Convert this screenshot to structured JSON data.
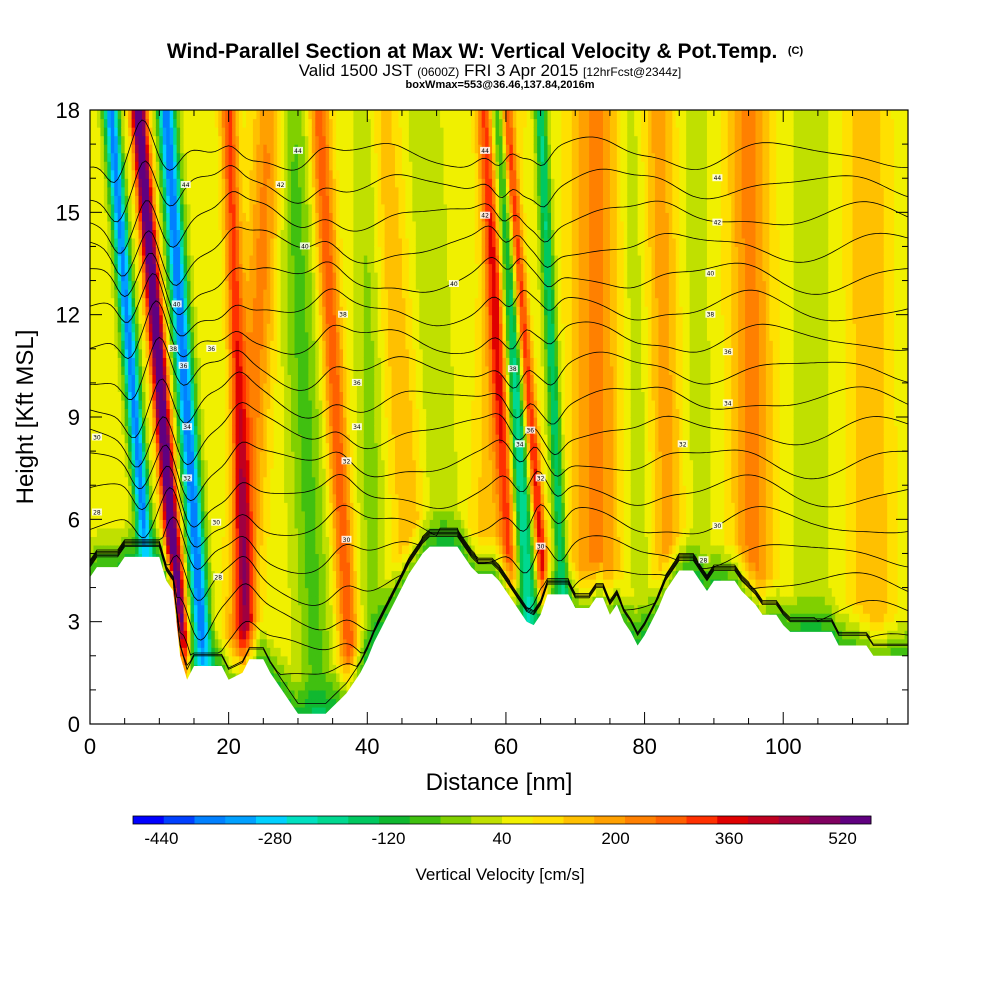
{
  "chart_data": {
    "type": "heatmap",
    "title": "Wind-Parallel Section at Max W: Vertical Velocity & Pot.Temp.",
    "copyright": "(C)",
    "subtitle_prefix": "Valid 1500 JST",
    "subtitle_utc": "(0600Z)",
    "subtitle_date": "FRI 3 Apr 2015",
    "subtitle_forecast": "[12hrFcst@2344z]",
    "box_info": "boxWmax=553@36.46,137.84,2016m",
    "xlabel": "Distance [nm]",
    "ylabel": "Height [Kft MSL]",
    "xlim": [
      0,
      118
    ],
    "ylim": [
      0,
      18
    ],
    "x_ticks": [
      "0",
      "20",
      "40",
      "60",
      "80",
      "100"
    ],
    "y_ticks": [
      "0",
      "3",
      "6",
      "9",
      "12",
      "15",
      "18"
    ],
    "colorbar": {
      "title": "Vertical Velocity [cm/s]",
      "tick_labels": [
        "-440",
        "-280",
        "-120",
        "40",
        "200",
        "360",
        "520"
      ],
      "min": -480,
      "max": 560,
      "colors": [
        "#0000ff",
        "#0040ff",
        "#0080ff",
        "#00a0ff",
        "#00d0ff",
        "#00e0c0",
        "#00d890",
        "#00c860",
        "#10b830",
        "#40c010",
        "#80d000",
        "#c0e000",
        "#f0f000",
        "#ffe000",
        "#ffc000",
        "#ffa000",
        "#ff8000",
        "#ff6000",
        "#ff3000",
        "#e00000",
        "#c00020",
        "#a00040",
        "#800060",
        "#600080"
      ]
    },
    "updrafts": [
      {
        "x0": 14,
        "x1": 7,
        "amplitude": 560,
        "width": 1.1
      },
      {
        "x0": 10,
        "x1": 3,
        "amplitude": -430,
        "width": 1.1
      },
      {
        "x0": 17,
        "x1": 11,
        "amplitude": -450,
        "width": 1.3
      },
      {
        "x0": 21,
        "x1": 26,
        "amplitude": 170,
        "width": 2.3
      },
      {
        "x0": 23,
        "x1": 20,
        "amplitude": 250,
        "width": 1.2
      },
      {
        "x0": 33,
        "x1": 29,
        "amplitude": -120,
        "width": 2.5
      },
      {
        "x0": 38,
        "x1": 33,
        "amplitude": 230,
        "width": 1.5
      },
      {
        "x0": 41,
        "x1": 40,
        "amplitude": -80,
        "width": 2
      },
      {
        "x0": 48,
        "x1": 42,
        "amplitude": 100,
        "width": 2.5
      },
      {
        "x0": 52,
        "x1": 48,
        "amplitude": -60,
        "width": 2.5
      },
      {
        "x0": 56,
        "x1": 60,
        "amplitude": 90,
        "width": 2.5
      },
      {
        "x0": 64,
        "x1": 59,
        "amplitude": -300,
        "width": 1.5
      },
      {
        "x0": 62,
        "x1": 57,
        "amplitude": 270,
        "width": 1.3
      },
      {
        "x0": 67,
        "x1": 60,
        "amplitude": 320,
        "width": 0.9
      },
      {
        "x0": 69,
        "x1": 65,
        "amplitude": -240,
        "width": 0.9
      },
      {
        "x0": 73,
        "x1": 73,
        "amplitude": 170,
        "width": 3.5
      },
      {
        "x0": 80,
        "x1": 78,
        "amplitude": -60,
        "width": 2
      },
      {
        "x0": 84,
        "x1": 82,
        "amplitude": 130,
        "width": 2.5
      },
      {
        "x0": 88,
        "x1": 87,
        "amplitude": -40,
        "width": 2.5
      },
      {
        "x0": 96,
        "x1": 95,
        "amplitude": 170,
        "width": 3
      },
      {
        "x0": 104,
        "x1": 104,
        "amplitude": -50,
        "width": 3
      },
      {
        "x0": 113,
        "x1": 112,
        "amplitude": 110,
        "width": 3
      }
    ],
    "terrain": [
      {
        "x": 0,
        "h": 4.3
      },
      {
        "x": 1,
        "h": 4.6
      },
      {
        "x": 4,
        "h": 4.6
      },
      {
        "x": 5,
        "h": 4.9
      },
      {
        "x": 10,
        "h": 4.9
      },
      {
        "x": 11,
        "h": 4.2
      },
      {
        "x": 12,
        "h": 3.9
      },
      {
        "x": 13,
        "h": 2.0
      },
      {
        "x": 14,
        "h": 1.3
      },
      {
        "x": 15,
        "h": 1.7
      },
      {
        "x": 19,
        "h": 1.7
      },
      {
        "x": 20,
        "h": 1.3
      },
      {
        "x": 22,
        "h": 1.5
      },
      {
        "x": 23,
        "h": 1.9
      },
      {
        "x": 25,
        "h": 1.9
      },
      {
        "x": 26,
        "h": 1.5
      },
      {
        "x": 27,
        "h": 1.2
      },
      {
        "x": 28,
        "h": 0.9
      },
      {
        "x": 29,
        "h": 0.6
      },
      {
        "x": 30,
        "h": 0.3
      },
      {
        "x": 31,
        "h": 0.3
      },
      {
        "x": 34,
        "h": 0.3
      },
      {
        "x": 35,
        "h": 0.5
      },
      {
        "x": 36,
        "h": 0.7
      },
      {
        "x": 37,
        "h": 0.9
      },
      {
        "x": 38,
        "h": 1.2
      },
      {
        "x": 39,
        "h": 1.5
      },
      {
        "x": 40,
        "h": 1.9
      },
      {
        "x": 41,
        "h": 2.4
      },
      {
        "x": 42,
        "h": 2.8
      },
      {
        "x": 43,
        "h": 3.2
      },
      {
        "x": 44,
        "h": 3.6
      },
      {
        "x": 45,
        "h": 4.0
      },
      {
        "x": 46,
        "h": 4.4
      },
      {
        "x": 47,
        "h": 4.7
      },
      {
        "x": 48,
        "h": 5.0
      },
      {
        "x": 49,
        "h": 5.2
      },
      {
        "x": 53,
        "h": 5.2
      },
      {
        "x": 54,
        "h": 4.9
      },
      {
        "x": 55,
        "h": 4.6
      },
      {
        "x": 56,
        "h": 4.4
      },
      {
        "x": 58,
        "h": 4.4
      },
      {
        "x": 59,
        "h": 4.2
      },
      {
        "x": 60,
        "h": 3.9
      },
      {
        "x": 61,
        "h": 3.6
      },
      {
        "x": 62,
        "h": 3.3
      },
      {
        "x": 63,
        "h": 3.0
      },
      {
        "x": 64,
        "h": 2.9
      },
      {
        "x": 65,
        "h": 3.2
      },
      {
        "x": 66,
        "h": 3.8
      },
      {
        "x": 69,
        "h": 3.8
      },
      {
        "x": 70,
        "h": 3.4
      },
      {
        "x": 72,
        "h": 3.4
      },
      {
        "x": 73,
        "h": 3.7
      },
      {
        "x": 74,
        "h": 3.7
      },
      {
        "x": 75,
        "h": 3.2
      },
      {
        "x": 76,
        "h": 3.5
      },
      {
        "x": 77,
        "h": 3.0
      },
      {
        "x": 78,
        "h": 2.7
      },
      {
        "x": 79,
        "h": 2.3
      },
      {
        "x": 80,
        "h": 2.6
      },
      {
        "x": 81,
        "h": 3.0
      },
      {
        "x": 82,
        "h": 3.4
      },
      {
        "x": 83,
        "h": 3.9
      },
      {
        "x": 84,
        "h": 4.2
      },
      {
        "x": 85,
        "h": 4.5
      },
      {
        "x": 87,
        "h": 4.5
      },
      {
        "x": 88,
        "h": 4.2
      },
      {
        "x": 89,
        "h": 3.9
      },
      {
        "x": 90,
        "h": 4.2
      },
      {
        "x": 93,
        "h": 4.2
      },
      {
        "x": 94,
        "h": 3.9
      },
      {
        "x": 96,
        "h": 3.5
      },
      {
        "x": 97,
        "h": 3.2
      },
      {
        "x": 99,
        "h": 3.2
      },
      {
        "x": 100,
        "h": 2.9
      },
      {
        "x": 101,
        "h": 2.7
      },
      {
        "x": 107,
        "h": 2.7
      },
      {
        "x": 108,
        "h": 2.3
      },
      {
        "x": 112,
        "h": 2.3
      },
      {
        "x": 113,
        "h": 2.0
      },
      {
        "x": 118,
        "h": 2.0
      }
    ],
    "contour_labels": [
      {
        "x": 13.8,
        "y": 15.8,
        "text": "44"
      },
      {
        "x": 12.5,
        "y": 12.3,
        "text": "40"
      },
      {
        "x": 12.0,
        "y": 11.0,
        "text": "38"
      },
      {
        "x": 13.5,
        "y": 10.5,
        "text": "36"
      },
      {
        "x": 14.0,
        "y": 8.7,
        "text": "34"
      },
      {
        "x": 14.0,
        "y": 7.2,
        "text": "32"
      },
      {
        "x": 17.5,
        "y": 11.0,
        "text": "36"
      },
      {
        "x": 18.2,
        "y": 5.9,
        "text": "30"
      },
      {
        "x": 18.5,
        "y": 4.3,
        "text": "28"
      },
      {
        "x": 1.0,
        "y": 8.4,
        "text": "30"
      },
      {
        "x": 1.0,
        "y": 6.2,
        "text": "28"
      },
      {
        "x": 30.0,
        "y": 16.8,
        "text": "44"
      },
      {
        "x": 27.5,
        "y": 15.8,
        "text": "42"
      },
      {
        "x": 31.0,
        "y": 14.0,
        "text": "40"
      },
      {
        "x": 36.5,
        "y": 12.0,
        "text": "38"
      },
      {
        "x": 38.5,
        "y": 10.0,
        "text": "36"
      },
      {
        "x": 38.5,
        "y": 8.7,
        "text": "34"
      },
      {
        "x": 37.0,
        "y": 7.7,
        "text": "32"
      },
      {
        "x": 37.0,
        "y": 5.4,
        "text": "30"
      },
      {
        "x": 57.0,
        "y": 16.8,
        "text": "44"
      },
      {
        "x": 57.0,
        "y": 14.9,
        "text": "42"
      },
      {
        "x": 52.5,
        "y": 12.9,
        "text": "40"
      },
      {
        "x": 61.0,
        "y": 10.4,
        "text": "38"
      },
      {
        "x": 62.0,
        "y": 8.2,
        "text": "34"
      },
      {
        "x": 63.5,
        "y": 8.6,
        "text": "36"
      },
      {
        "x": 65.0,
        "y": 7.2,
        "text": "32"
      },
      {
        "x": 65.0,
        "y": 5.2,
        "text": "30"
      },
      {
        "x": 90.5,
        "y": 16.0,
        "text": "44"
      },
      {
        "x": 90.5,
        "y": 14.7,
        "text": "42"
      },
      {
        "x": 89.5,
        "y": 13.2,
        "text": "40"
      },
      {
        "x": 89.5,
        "y": 12.0,
        "text": "38"
      },
      {
        "x": 92.0,
        "y": 10.9,
        "text": "36"
      },
      {
        "x": 92.0,
        "y": 9.4,
        "text": "34"
      },
      {
        "x": 85.5,
        "y": 8.2,
        "text": "32"
      },
      {
        "x": 90.5,
        "y": 5.8,
        "text": "30"
      },
      {
        "x": 88.5,
        "y": 4.8,
        "text": "28"
      }
    ],
    "contour_levels": [
      28,
      29,
      30,
      31,
      32,
      33,
      34,
      35,
      36,
      37,
      38,
      39,
      40,
      41,
      42,
      43,
      44,
      45,
      46
    ]
  }
}
